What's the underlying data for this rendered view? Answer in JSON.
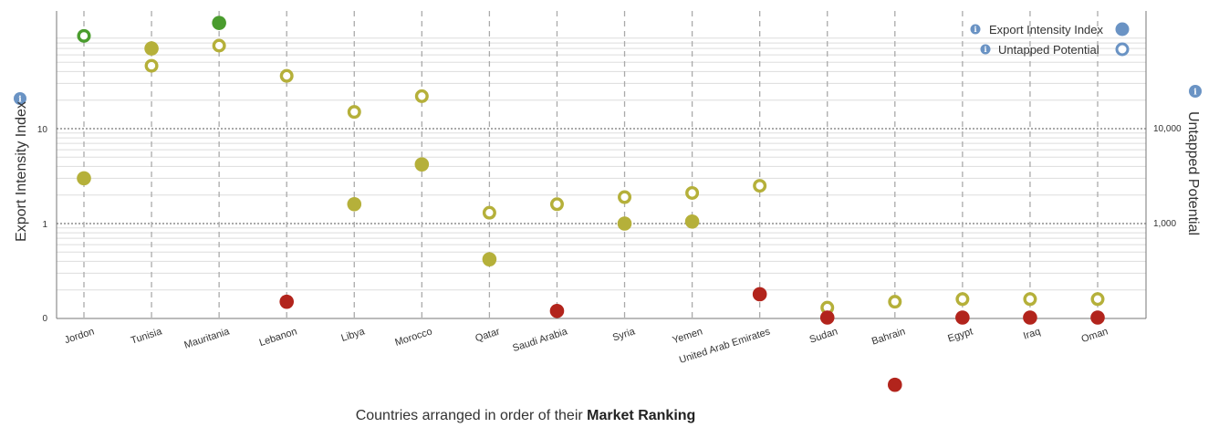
{
  "chart_data": {
    "type": "scatter",
    "xlabel_prefix": "Countries arranged in order of their",
    "xlabel_bold": "Market Ranking",
    "ylabel_left": "Export Intensity Index",
    "ylabel_right": "Untapped Potential",
    "left_ticks": [
      "0",
      "1",
      "10"
    ],
    "right_ticks": [
      "1,000",
      "10,000"
    ],
    "legend_position": "top-right",
    "categories": [
      "Jordon",
      "Tunisia",
      "Mauritania",
      "Lebanon",
      "Libya",
      "Morocco",
      "Qatar",
      "Saudi Arabia",
      "Syria",
      "Yemen",
      "United Arab Emirates",
      "Sudan",
      "Bahrain",
      "Egypt",
      "Iraq",
      "Oman"
    ],
    "series": [
      {
        "name": "Export Intensity Index",
        "marker": "filled",
        "axis": "left",
        "values": [
          3.0,
          70,
          130,
          0.15,
          1.6,
          4.2,
          0.42,
          0.12,
          1.0,
          1.05,
          0.18,
          0.01,
          0.02,
          0.01,
          0.01,
          0.01
        ],
        "colors": [
          "#b5b03a",
          "#b5b03a",
          "#4a9c2e",
          "#b2241c",
          "#b5b03a",
          "#b5b03a",
          "#b5b03a",
          "#b2241c",
          "#b5b03a",
          "#b5b03a",
          "#b2241c",
          "#b2241c",
          "#b2241c",
          "#b2241c",
          "#b2241c",
          "#b2241c"
        ]
      },
      {
        "name": "Untapped Potential",
        "marker": "hollow",
        "axis": "right",
        "values": [
          95000,
          46000,
          75000,
          36000,
          15000,
          22000,
          1300,
          1600,
          1900,
          2100,
          2500,
          130,
          150,
          160,
          160,
          160
        ],
        "colors": [
          "#4a9c2e",
          "#b5b03a",
          "#b5b03a",
          "#b5b03a",
          "#b5b03a",
          "#b5b03a",
          "#b5b03a",
          "#b5b03a",
          "#b5b03a",
          "#b5b03a",
          "#b5b03a",
          "#b5b03a",
          "#b5b03a",
          "#b5b03a",
          "#b5b03a",
          "#b5b03a"
        ]
      }
    ],
    "colors": {
      "legend_blue": "#6a93c4",
      "high": "#4a9c2e",
      "medium": "#b5b03a",
      "low": "#b2241c",
      "grid": "#dddddd"
    }
  }
}
